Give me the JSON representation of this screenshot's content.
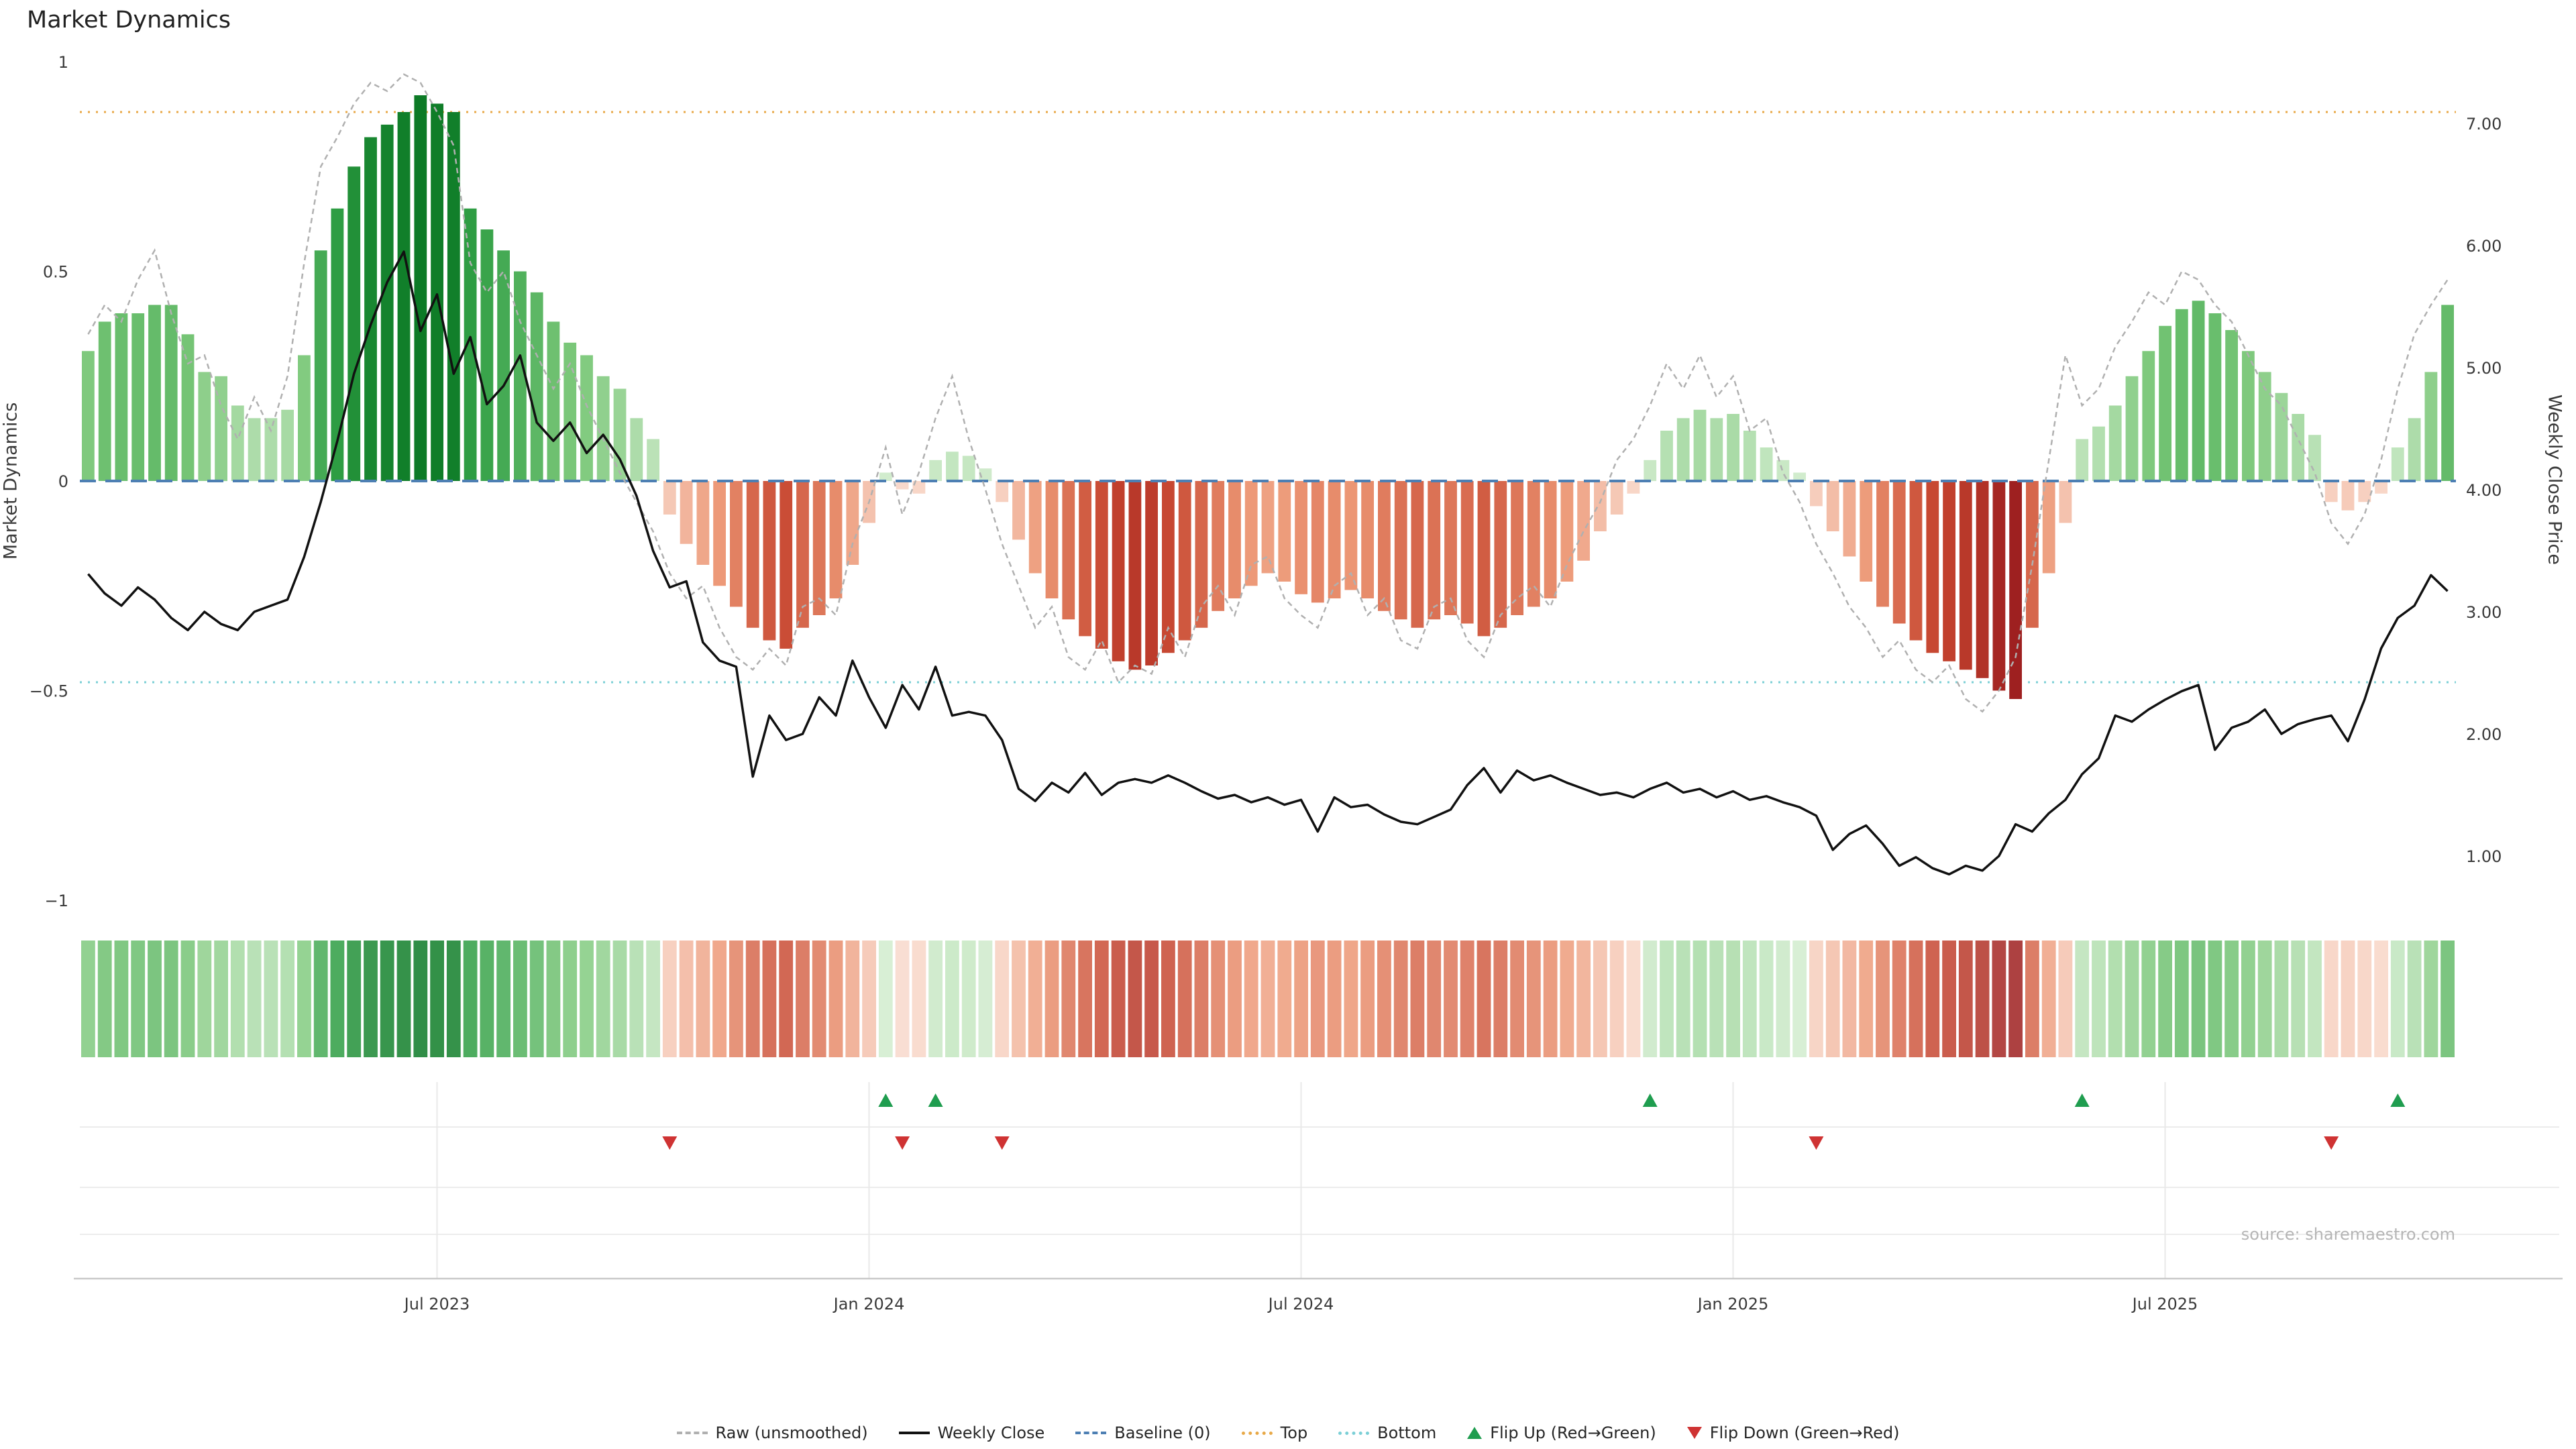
{
  "title": "Market Dynamics",
  "source": "source: sharemaestro.com",
  "axes": {
    "left_label": "Market Dynamics",
    "right_label": "Weekly Close Price",
    "left_ticks": [
      {
        "label": "1",
        "value": 1
      },
      {
        "label": "0.5",
        "value": 0.5
      },
      {
        "label": "0",
        "value": 0
      },
      {
        "label": "−0.5",
        "value": -0.5
      },
      {
        "label": "−1",
        "value": -1
      }
    ],
    "right_ticks": [
      {
        "label": "7.00",
        "value": 7
      },
      {
        "label": "6.00",
        "value": 6
      },
      {
        "label": "5.00",
        "value": 5
      },
      {
        "label": "4.00",
        "value": 4
      },
      {
        "label": "3.00",
        "value": 3
      },
      {
        "label": "2.00",
        "value": 2
      },
      {
        "label": "1.00",
        "value": 1
      }
    ],
    "x_ticks": [
      {
        "label": "Jul 2023",
        "week": 21
      },
      {
        "label": "Jan 2024",
        "week": 47
      },
      {
        "label": "Jul 2024",
        "week": 73
      },
      {
        "label": "Jan 2025",
        "week": 99
      },
      {
        "label": "Jul 2025",
        "week": 125
      }
    ]
  },
  "colors": {
    "raw": "#b0b0b0",
    "weekly_close": "#111111",
    "baseline": "#4d7fb3",
    "top": "#e8a948",
    "bottom": "#7bcfd6",
    "flip_up": "#1f9d4f",
    "flip_down": "#cf3333",
    "positive_dark": "#0c7a26",
    "positive_light": "#d7eed3",
    "negative_dark": "#9e2020",
    "negative_light": "#f9ded2"
  },
  "legend": {
    "items": [
      {
        "label": "Raw (unsmoothed)",
        "marker": "dashed-line",
        "color": "#b0b0b0"
      },
      {
        "label": "Weekly Close",
        "marker": "line",
        "color": "#111111"
      },
      {
        "label": "Baseline (0)",
        "marker": "dashed-line",
        "color": "#4d7fb3"
      },
      {
        "label": "Top",
        "marker": "dotted-line",
        "color": "#e8a948"
      },
      {
        "label": "Bottom",
        "marker": "dotted-line",
        "color": "#7bcfd6"
      },
      {
        "label": "Flip Up (Red→Green)",
        "marker": "triangle-up",
        "color": "#1f9d4f"
      },
      {
        "label": "Flip Down (Green→Red)",
        "marker": "triangle-down",
        "color": "#cf3333"
      }
    ]
  },
  "chart_data": {
    "type": "bar",
    "frequency": "weekly",
    "title": "Market Dynamics",
    "ylim_left": [
      -1,
      1
    ],
    "right_axis_ticks": [
      1,
      2,
      3,
      4,
      5,
      6,
      7
    ],
    "x_tick_labels": [
      "Jul 2023",
      "Jan 2024",
      "Jul 2024",
      "Jan 2025",
      "Jul 2025"
    ],
    "series": [
      {
        "name": "Market Dynamics",
        "type": "bar",
        "axis": "left",
        "values": [
          0.31,
          0.38,
          0.4,
          0.4,
          0.42,
          0.42,
          0.35,
          0.26,
          0.25,
          0.18,
          0.15,
          0.15,
          0.17,
          0.3,
          0.55,
          0.65,
          0.75,
          0.82,
          0.85,
          0.88,
          0.92,
          0.9,
          0.88,
          0.65,
          0.6,
          0.55,
          0.5,
          0.45,
          0.38,
          0.33,
          0.3,
          0.25,
          0.22,
          0.15,
          0.1,
          -0.08,
          -0.15,
          -0.2,
          -0.25,
          -0.3,
          -0.35,
          -0.38,
          -0.4,
          -0.35,
          -0.32,
          -0.28,
          -0.2,
          -0.1,
          0.02,
          -0.02,
          -0.03,
          0.05,
          0.07,
          0.06,
          0.03,
          -0.05,
          -0.14,
          -0.22,
          -0.28,
          -0.33,
          -0.37,
          -0.4,
          -0.43,
          -0.45,
          -0.44,
          -0.41,
          -0.38,
          -0.35,
          -0.31,
          -0.28,
          -0.25,
          -0.22,
          -0.24,
          -0.27,
          -0.29,
          -0.28,
          -0.26,
          -0.28,
          -0.31,
          -0.33,
          -0.35,
          -0.33,
          -0.32,
          -0.34,
          -0.37,
          -0.35,
          -0.32,
          -0.3,
          -0.28,
          -0.24,
          -0.19,
          -0.12,
          -0.08,
          -0.03,
          0.05,
          0.12,
          0.15,
          0.17,
          0.15,
          0.16,
          0.12,
          0.08,
          0.05,
          0.02,
          -0.06,
          -0.12,
          -0.18,
          -0.24,
          -0.3,
          -0.34,
          -0.38,
          -0.41,
          -0.43,
          -0.45,
          -0.47,
          -0.5,
          -0.52,
          -0.35,
          -0.22,
          -0.1,
          0.1,
          0.13,
          0.18,
          0.25,
          0.31,
          0.37,
          0.41,
          0.43,
          0.4,
          0.36,
          0.31,
          0.26,
          0.21,
          0.16,
          0.11,
          -0.05,
          -0.07,
          -0.05,
          -0.03,
          0.08,
          0.15,
          0.26,
          0.42
        ]
      },
      {
        "name": "Raw (unsmoothed)",
        "type": "line",
        "style": "dashed",
        "axis": "left",
        "values": [
          0.35,
          0.42,
          0.38,
          0.48,
          0.55,
          0.4,
          0.28,
          0.3,
          0.18,
          0.1,
          0.2,
          0.12,
          0.25,
          0.52,
          0.75,
          0.82,
          0.9,
          0.95,
          0.93,
          0.97,
          0.95,
          0.88,
          0.8,
          0.52,
          0.45,
          0.5,
          0.38,
          0.3,
          0.22,
          0.28,
          0.18,
          0.1,
          0.02,
          -0.05,
          -0.12,
          -0.22,
          -0.28,
          -0.25,
          -0.35,
          -0.42,
          -0.45,
          -0.4,
          -0.44,
          -0.3,
          -0.28,
          -0.32,
          -0.15,
          -0.05,
          0.08,
          -0.08,
          0.02,
          0.15,
          0.25,
          0.1,
          -0.02,
          -0.15,
          -0.25,
          -0.35,
          -0.3,
          -0.42,
          -0.45,
          -0.38,
          -0.48,
          -0.44,
          -0.46,
          -0.35,
          -0.42,
          -0.3,
          -0.25,
          -0.32,
          -0.2,
          -0.18,
          -0.28,
          -0.32,
          -0.35,
          -0.25,
          -0.22,
          -0.32,
          -0.28,
          -0.38,
          -0.4,
          -0.3,
          -0.28,
          -0.38,
          -0.42,
          -0.32,
          -0.28,
          -0.25,
          -0.3,
          -0.2,
          -0.12,
          -0.05,
          0.05,
          0.1,
          0.18,
          0.28,
          0.22,
          0.3,
          0.2,
          0.25,
          0.12,
          0.15,
          0.02,
          -0.05,
          -0.15,
          -0.22,
          -0.3,
          -0.35,
          -0.42,
          -0.38,
          -0.45,
          -0.48,
          -0.44,
          -0.52,
          -0.55,
          -0.5,
          -0.42,
          -0.2,
          0.05,
          0.3,
          0.18,
          0.22,
          0.32,
          0.38,
          0.45,
          0.42,
          0.5,
          0.48,
          0.42,
          0.38,
          0.3,
          0.22,
          0.18,
          0.1,
          0.02,
          -0.1,
          -0.15,
          -0.08,
          0.05,
          0.22,
          0.35,
          0.42,
          0.48
        ]
      },
      {
        "name": "Weekly Close",
        "type": "line",
        "axis": "right",
        "values": [
          3.31,
          3.15,
          3.05,
          3.2,
          3.1,
          2.95,
          2.85,
          3.0,
          2.9,
          2.85,
          3.0,
          3.05,
          3.1,
          3.45,
          3.9,
          4.4,
          4.95,
          5.35,
          5.7,
          5.95,
          5.3,
          5.6,
          4.95,
          5.25,
          4.7,
          4.85,
          5.1,
          4.55,
          4.4,
          4.55,
          4.3,
          4.45,
          4.25,
          3.95,
          3.5,
          3.2,
          3.25,
          2.75,
          2.6,
          2.55,
          1.65,
          2.15,
          1.95,
          2.0,
          2.3,
          2.15,
          2.6,
          2.3,
          2.05,
          2.4,
          2.2,
          2.55,
          2.15,
          2.18,
          2.15,
          1.95,
          1.55,
          1.45,
          1.6,
          1.52,
          1.68,
          1.5,
          1.6,
          1.63,
          1.6,
          1.66,
          1.6,
          1.53,
          1.47,
          1.5,
          1.44,
          1.48,
          1.42,
          1.46,
          1.2,
          1.48,
          1.4,
          1.42,
          1.34,
          1.28,
          1.26,
          1.32,
          1.38,
          1.58,
          1.72,
          1.52,
          1.7,
          1.62,
          1.66,
          1.6,
          1.55,
          1.5,
          1.52,
          1.48,
          1.55,
          1.6,
          1.52,
          1.55,
          1.48,
          1.53,
          1.46,
          1.49,
          1.44,
          1.4,
          1.33,
          1.05,
          1.18,
          1.25,
          1.1,
          0.92,
          0.99,
          0.9,
          0.85,
          0.92,
          0.88,
          1.0,
          1.26,
          1.2,
          1.35,
          1.46,
          1.67,
          1.8,
          2.15,
          2.1,
          2.2,
          2.28,
          2.35,
          2.4,
          1.87,
          2.05,
          2.1,
          2.2,
          2.0,
          2.08,
          2.12,
          2.15,
          1.94,
          2.28,
          2.7,
          2.95,
          3.05,
          3.3,
          3.17
        ]
      }
    ],
    "reference_lines": [
      {
        "name": "Baseline (0)",
        "value": 0,
        "style": "dashed"
      },
      {
        "name": "Top",
        "value": 0.88,
        "style": "dotted"
      },
      {
        "name": "Bottom",
        "value": -0.48,
        "style": "dotted"
      }
    ],
    "flip_up_weeks": [
      48,
      51,
      94,
      120,
      139
    ],
    "flip_down_weeks": [
      35,
      49,
      55,
      104,
      135
    ],
    "heatmap": {
      "note": "color strip below main plot encodes Market Dynamics bar values with same green/red colormap",
      "values_same_as": "Market Dynamics"
    }
  }
}
